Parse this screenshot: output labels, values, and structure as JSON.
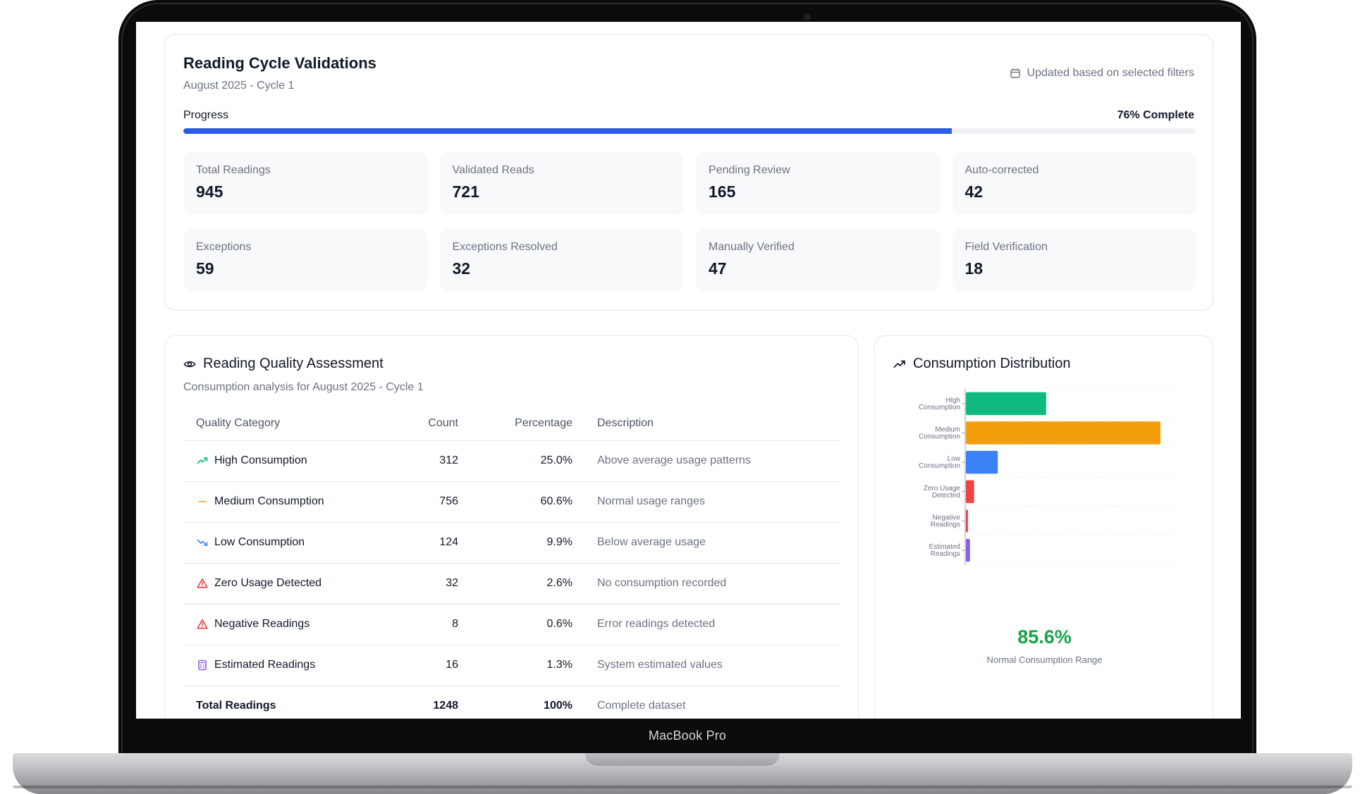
{
  "device": {
    "label": "MacBook Pro"
  },
  "header": {
    "title": "Reading Cycle Validations",
    "subtitle": "August 2025 - Cycle 1",
    "updated_note": "Updated based on selected filters",
    "progress_label": "Progress",
    "progress_text": "76% Complete",
    "progress_fraction": 0.76,
    "progress_color": "#2b5ce6"
  },
  "stats": [
    {
      "label": "Total Readings",
      "value": "945"
    },
    {
      "label": "Validated Reads",
      "value": "721"
    },
    {
      "label": "Pending Review",
      "value": "165"
    },
    {
      "label": "Auto-corrected",
      "value": "42"
    },
    {
      "label": "Exceptions",
      "value": "59"
    },
    {
      "label": "Exceptions Resolved",
      "value": "32"
    },
    {
      "label": "Manually Verified",
      "value": "47"
    },
    {
      "label": "Field Verification",
      "value": "18"
    }
  ],
  "quality": {
    "title": "Reading Quality Assessment",
    "subtitle": "Consumption analysis for August 2025 - Cycle 1",
    "columns": [
      "Quality Category",
      "Count",
      "Percentage",
      "Description"
    ],
    "rows": [
      {
        "icon": "trending-up-icon",
        "color": "#10b981",
        "category": "High Consumption",
        "count": "312",
        "percentage": "25.0%",
        "description": "Above average usage patterns"
      },
      {
        "icon": "minus-icon",
        "color": "#f59e0b",
        "category": "Medium Consumption",
        "count": "756",
        "percentage": "60.6%",
        "description": "Normal usage ranges"
      },
      {
        "icon": "trending-down-icon",
        "color": "#3b82f6",
        "category": "Low Consumption",
        "count": "124",
        "percentage": "9.9%",
        "description": "Below average usage"
      },
      {
        "icon": "alert-triangle-icon",
        "color": "#ef4444",
        "category": "Zero Usage Detected",
        "count": "32",
        "percentage": "2.6%",
        "description": "No consumption recorded"
      },
      {
        "icon": "alert-triangle-icon",
        "color": "#ef4444",
        "category": "Negative Readings",
        "count": "8",
        "percentage": "0.6%",
        "description": "Error readings detected"
      },
      {
        "icon": "calculator-icon",
        "color": "#8b5cf6",
        "category": "Estimated Readings",
        "count": "16",
        "percentage": "1.3%",
        "description": "System estimated values"
      }
    ],
    "total": {
      "category": "Total Readings",
      "count": "1248",
      "percentage": "100%",
      "description": "Complete dataset"
    }
  },
  "distribution": {
    "title": "Consumption Distribution",
    "highlight_value": "85.6%",
    "highlight_caption": "Normal Consumption Range",
    "highlight_color": "#16a34a"
  },
  "chart_data": {
    "type": "bar",
    "orientation": "horizontal",
    "categories": [
      [
        "High",
        "Consumption"
      ],
      [
        "Medium",
        "Consumption"
      ],
      [
        "Low",
        "Consumption"
      ],
      [
        "Zero Usage",
        "Detected"
      ],
      [
        "Negative",
        "Readings"
      ],
      [
        "Estimated",
        "Readings"
      ]
    ],
    "values": [
      312,
      756,
      124,
      32,
      8,
      16
    ],
    "colors": [
      "#10b981",
      "#f59e0b",
      "#3b82f6",
      "#ef4444",
      "#ef4444",
      "#8b5cf6"
    ],
    "xlim": [
      0,
      800
    ],
    "grid": true,
    "legend": "none"
  }
}
